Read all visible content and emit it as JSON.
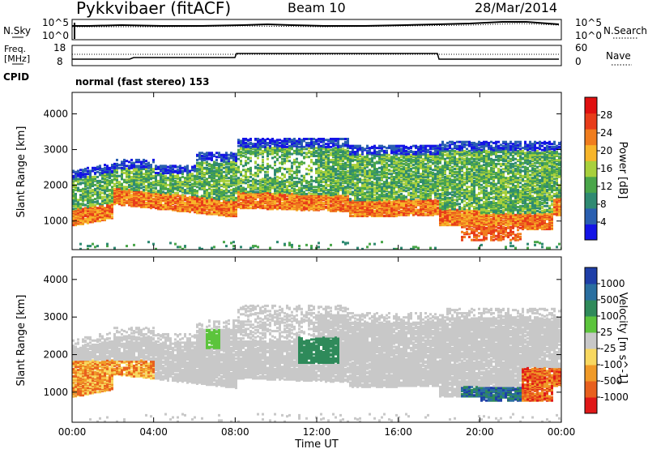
{
  "header": {
    "station": "Pykkvibaer (fitACF)",
    "beam": "Beam 10",
    "date": "28/Mar/2014"
  },
  "status": {
    "nsky_label": "N.Sky",
    "nsky_ticks": [
      "10^5",
      "10^0"
    ],
    "nsearch_label": "N.Search",
    "nsearch_ticks": [
      "10^5",
      "10^0"
    ],
    "freq_label_line1": "Freq.",
    "freq_label_line2": "[MHz]",
    "freq_ticks": [
      "18",
      "8"
    ],
    "nave_label": "Nave",
    "nave_ticks": [
      "60",
      "0"
    ],
    "cpid_label": "CPID",
    "cpid_text": "normal (fast stereo) 153"
  },
  "chart_data": [
    {
      "type": "heatmap",
      "name": "power",
      "ylabel": "Slant Range [km]",
      "yticks": [
        "1000",
        "2000",
        "3000",
        "4000"
      ],
      "ylim": [
        200,
        4600
      ],
      "xlim_hours": [
        0,
        24
      ],
      "xticks": [
        "00:00",
        "04:00",
        "08:00",
        "12:00",
        "16:00",
        "20:00",
        "00:00"
      ],
      "colorbar_label": "Power [dB]",
      "colorbar_ticks": [
        "4",
        "8",
        "12",
        "16",
        "20",
        "24",
        "28"
      ],
      "colorbar_colors": [
        "#1414e6",
        "#2a5fb0",
        "#2f8a72",
        "#4aa64a",
        "#a8d03c",
        "#f7b52a",
        "#f07d1e",
        "#e83c1a",
        "#e01010"
      ]
    },
    {
      "type": "heatmap",
      "name": "velocity",
      "ylabel": "Slant Range [km]",
      "yticks": [
        "1000",
        "2000",
        "3000",
        "4000"
      ],
      "ylim": [
        200,
        4600
      ],
      "xlim_hours": [
        0,
        24
      ],
      "xticks": [
        "00:00",
        "04:00",
        "08:00",
        "12:00",
        "16:00",
        "20:00",
        "00:00"
      ],
      "xlabel": "Time UT",
      "colorbar_label": "Velocity [m s^-1]",
      "colorbar_ticks": [
        "1000",
        "500",
        "100",
        "25",
        "-25",
        "-100",
        "-500",
        "-1000"
      ],
      "colorbar_colors": [
        "#1f3fa8",
        "#2a6fa0",
        "#2f8a5a",
        "#5cc43c",
        "#c8c8c8",
        "#f8d860",
        "#f09a28",
        "#e8601e",
        "#e01818"
      ]
    }
  ]
}
